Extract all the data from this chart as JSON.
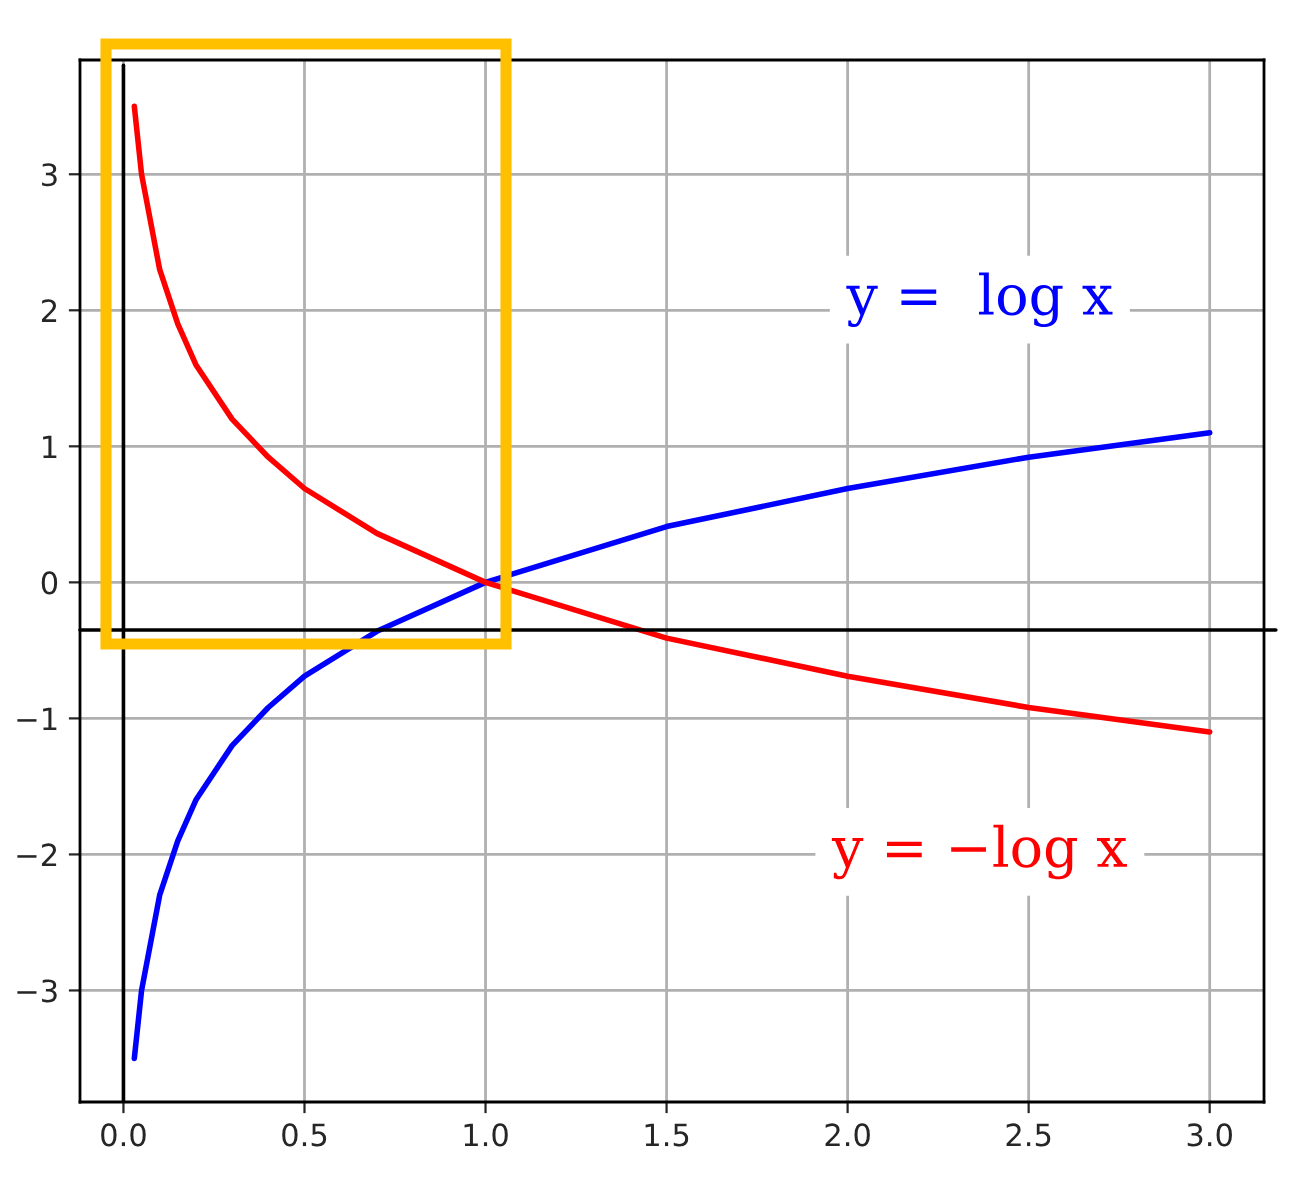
{
  "chart_data": {
    "type": "line",
    "x": [
      0.03,
      0.05,
      0.1,
      0.15,
      0.2,
      0.3,
      0.4,
      0.5,
      0.7,
      1.0,
      1.5,
      2.0,
      2.5,
      3.0
    ],
    "series": [
      {
        "name": "y =  log x",
        "color": "#0000ff",
        "values": [
          -3.5,
          -3.0,
          -2.3,
          -1.9,
          -1.6,
          -1.2,
          -0.92,
          -0.69,
          -0.36,
          0.0,
          0.41,
          0.69,
          0.92,
          1.1
        ]
      },
      {
        "name": "y = −log x",
        "color": "#ff0000",
        "values": [
          3.5,
          3.0,
          2.3,
          1.9,
          1.6,
          1.2,
          0.92,
          0.69,
          0.36,
          0.0,
          -0.41,
          -0.69,
          -0.92,
          -1.1
        ]
      }
    ],
    "xlim": [
      -0.12,
      3.15
    ],
    "ylim": [
      -3.82,
      3.84
    ],
    "xticks": [
      {
        "value": 0,
        "label": "0.0"
      },
      0.5,
      {
        "value": 1,
        "label": "1.0"
      },
      1.5,
      {
        "value": 2,
        "label": "2.0"
      },
      2.5,
      {
        "value": 3,
        "label": "3.0"
      }
    ],
    "yticks": [
      {
        "value": -3,
        "label": "−3"
      },
      {
        "value": -2,
        "label": "−2"
      },
      {
        "value": -1,
        "label": "−1"
      },
      0,
      1,
      2,
      3
    ],
    "ref_lines": [
      {
        "axis": "x",
        "value": 0,
        "color": "#000000"
      },
      {
        "axis": "y",
        "value": -0.35,
        "color": "#000000"
      }
    ],
    "grid": true,
    "legend": false,
    "marker": "none",
    "line_style": "solid"
  }
}
